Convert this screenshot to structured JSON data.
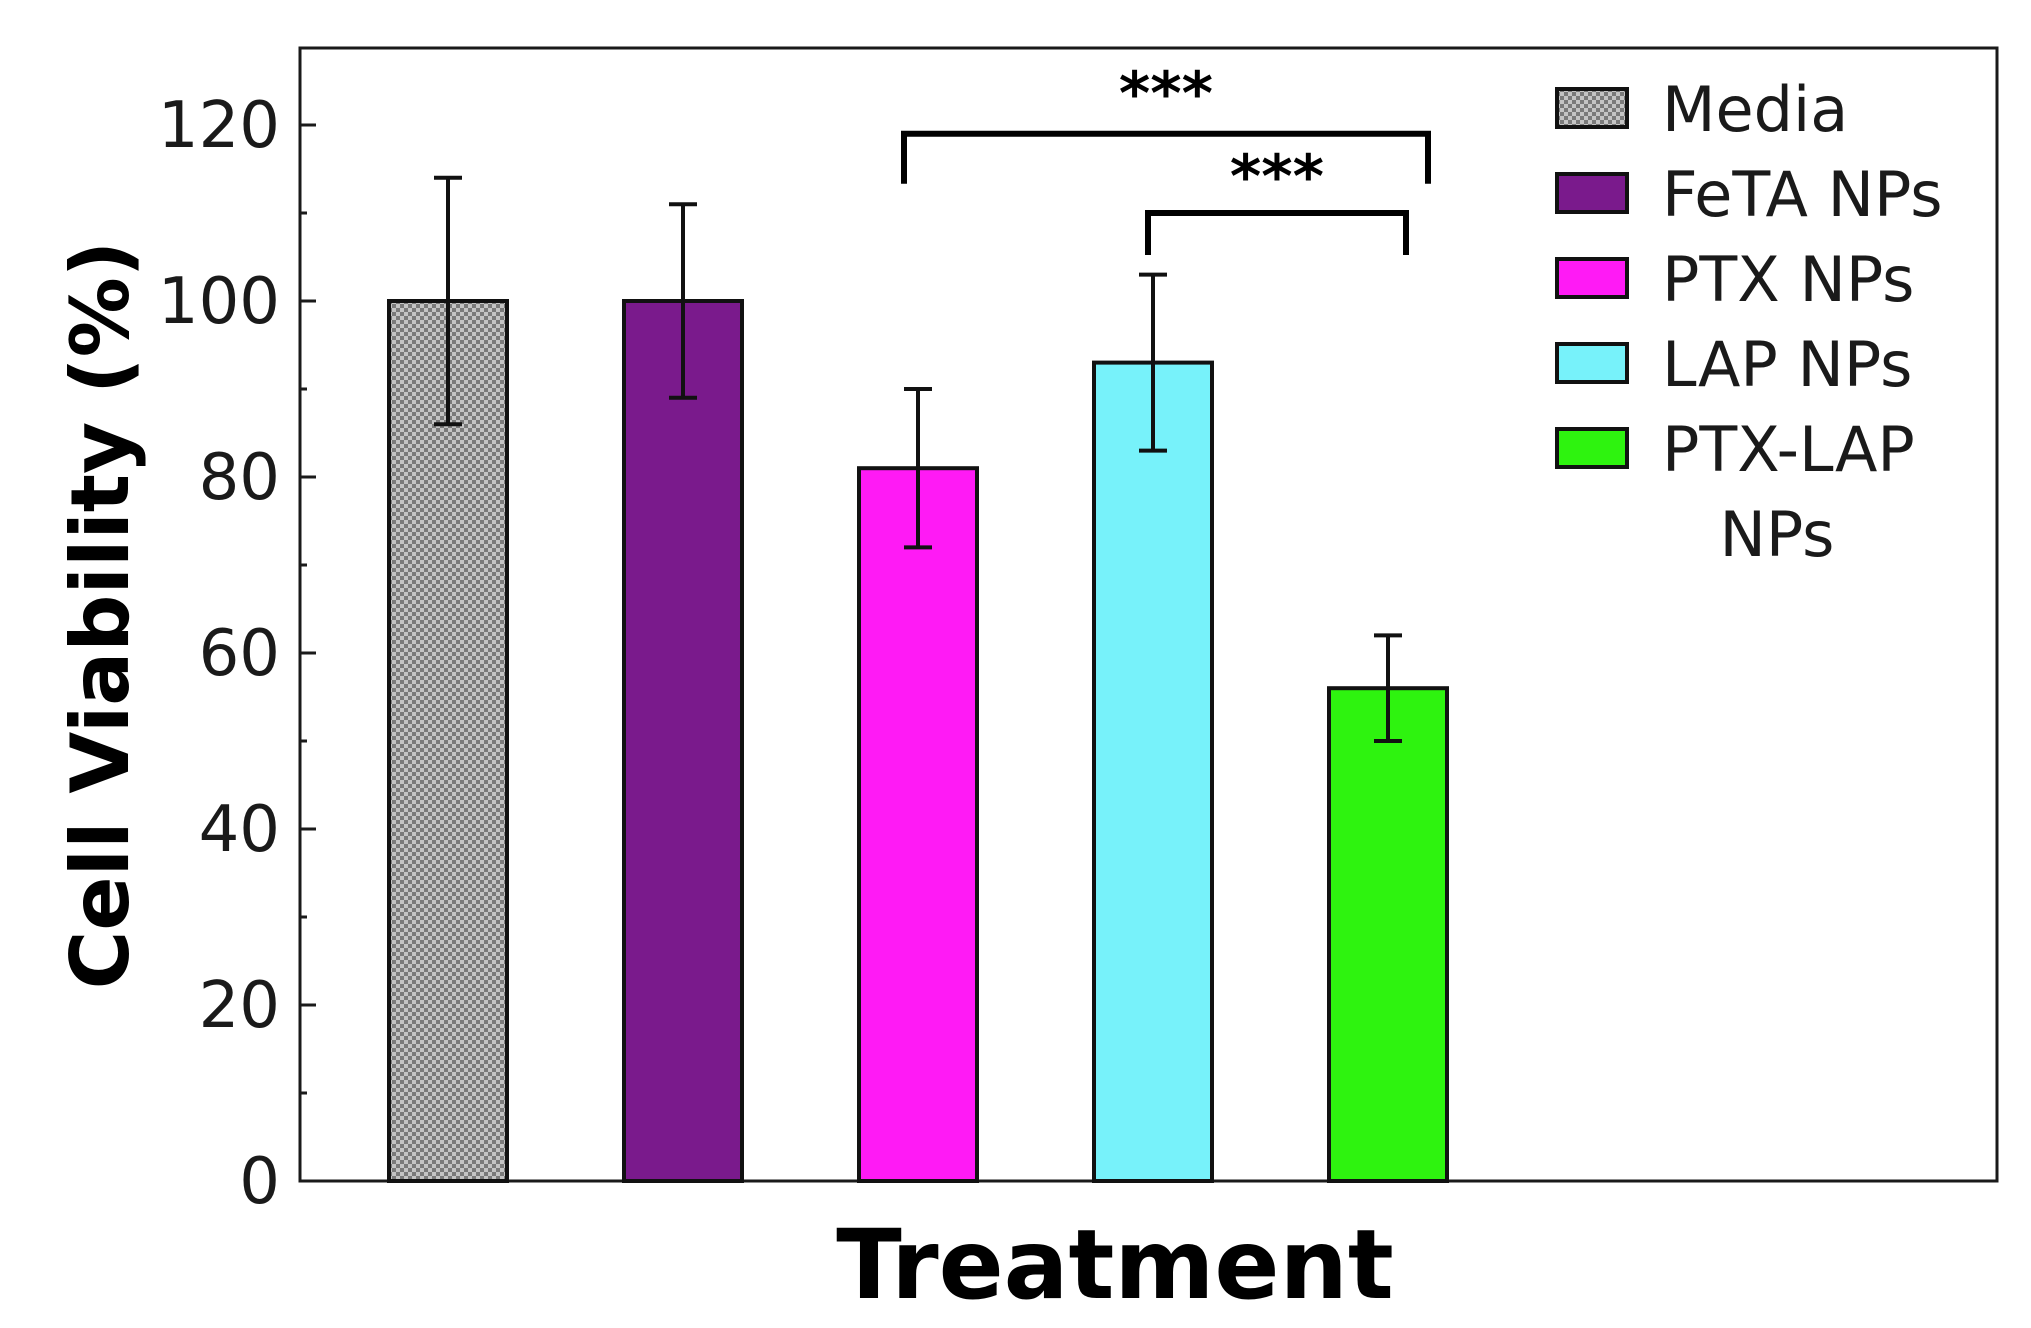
{
  "chart_data": {
    "type": "bar",
    "title": "",
    "xlabel": "Treatment",
    "ylabel": "Cell Viability (%)",
    "ylim": [
      0,
      128
    ],
    "yticks": [
      0,
      20,
      40,
      60,
      80,
      100,
      120
    ],
    "grid": false,
    "legend_position": "top-right",
    "categories": [
      "Media",
      "FeTA NPs",
      "PTX NPs",
      "LAP NPs",
      "PTX-LAP NPs"
    ],
    "legend_labels": [
      "Media",
      "FeTA NPs",
      "PTX NPs",
      "LAP NPs",
      "PTX-LAP"
    ],
    "legend_continuation": "NPs",
    "values": [
      100,
      100,
      81,
      93,
      56
    ],
    "errors": [
      14,
      11,
      9,
      10,
      6
    ],
    "colors": [
      "#b0b0b0",
      "#7a1a8c",
      "#ff1af5",
      "#77f2fa",
      "#2ef30f"
    ],
    "patterns": [
      "dotted",
      "solid",
      "solid",
      "solid",
      "solid"
    ],
    "significance": [
      {
        "from": 2,
        "to": 4,
        "label": "***"
      },
      {
        "from": 3,
        "to": 4,
        "label": "***"
      }
    ]
  }
}
